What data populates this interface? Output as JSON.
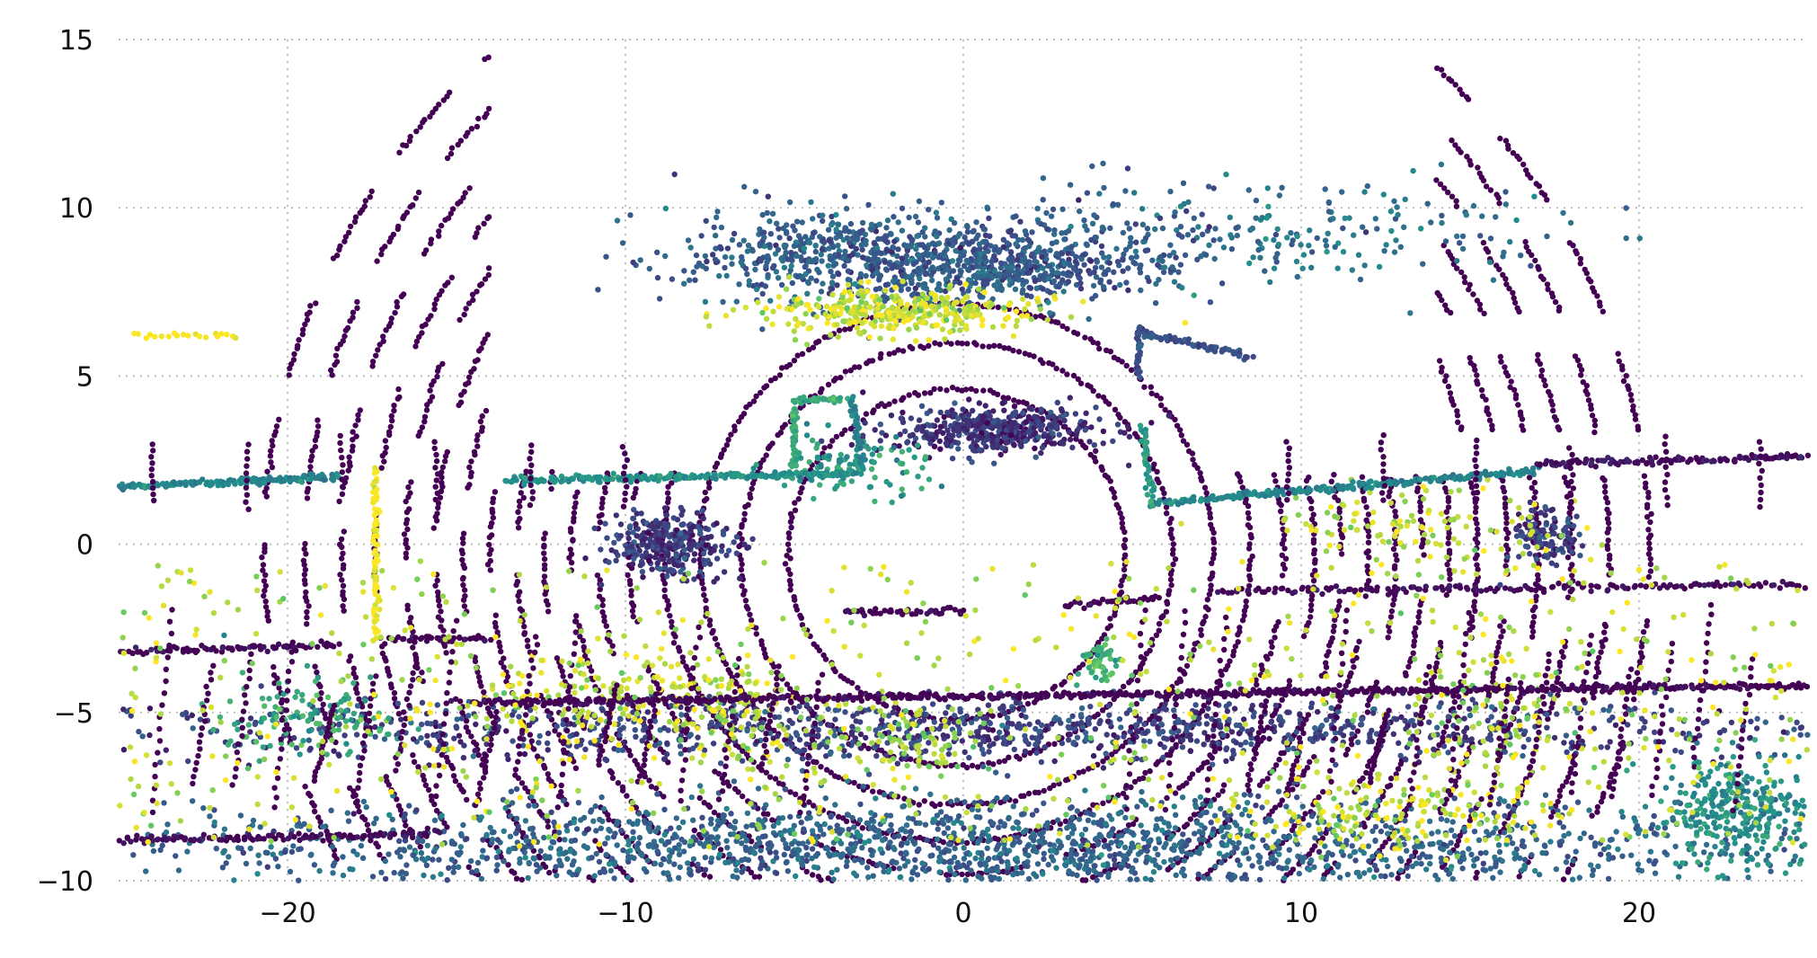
{
  "chart_data": {
    "type": "scatter",
    "title": "",
    "xlabel": "",
    "ylabel": "",
    "xlim": [
      -25,
      25
    ],
    "ylim": [
      -10,
      15
    ],
    "xticks": [
      -20,
      -10,
      0,
      10,
      20
    ],
    "yticks": [
      -10,
      -5,
      0,
      5,
      10,
      15
    ],
    "xtick_labels": [
      "−20",
      "−10",
      "0",
      "10",
      "20"
    ],
    "ytick_labels": [
      "−10",
      "−5",
      "0",
      "5",
      "10",
      "15"
    ],
    "grid": true,
    "grid_style": "dotted",
    "colormap": [
      "#440154",
      "#3b528b",
      "#21918c",
      "#5ec962",
      "#fde725"
    ],
    "description_points_note": "",
    "rings": {
      "center": [
        -0.2,
        -0.3
      ],
      "radii": [
        5.0,
        6.4,
        7.6,
        8.7,
        9.7,
        10.6,
        11.4,
        12.2,
        13.0,
        13.8,
        14.6,
        15.4,
        16.3,
        17.2,
        18.2,
        19.3,
        20.5
      ]
    },
    "clusters": [
      {
        "x": 0.8,
        "y": 3.4,
        "sx": 1.6,
        "sy": 0.35,
        "n": 450,
        "c": 0.15
      },
      {
        "x": -8.7,
        "y": 0.0,
        "sx": 0.9,
        "sy": 0.45,
        "n": 300,
        "c": 0.18
      },
      {
        "x": 17.2,
        "y": 0.3,
        "sx": 0.5,
        "sy": 0.4,
        "n": 120,
        "c": 0.2
      },
      {
        "x": -3.0,
        "y": 8.5,
        "sx": 2.8,
        "sy": 0.7,
        "n": 700,
        "c": 0.3
      },
      {
        "x": 1.5,
        "y": 8.2,
        "sx": 1.8,
        "sy": 0.45,
        "n": 350,
        "c": 0.28
      },
      {
        "x": -2.0,
        "y": 6.9,
        "sx": 2.0,
        "sy": 0.35,
        "n": 350,
        "c": 0.92
      },
      {
        "x": -3.4,
        "y": 2.3,
        "sx": 1.2,
        "sy": 0.5,
        "n": 110,
        "c": 0.55
      },
      {
        "x": 0.0,
        "y": -9.0,
        "sx": 12.0,
        "sy": 0.7,
        "n": 2000,
        "c": 0.32
      },
      {
        "x": 0.0,
        "y": -5.5,
        "sx": 14.0,
        "sy": 0.45,
        "n": 1200,
        "c": 0.2
      },
      {
        "x": -11.0,
        "y": -4.5,
        "sx": 2.2,
        "sy": 0.8,
        "n": 160,
        "c": 0.92
      },
      {
        "x": -6.8,
        "y": -5.0,
        "sx": 1.0,
        "sy": 0.7,
        "n": 110,
        "c": 0.9
      },
      {
        "x": 12.5,
        "y": -8.0,
        "sx": 2.2,
        "sy": 0.6,
        "n": 160,
        "c": 0.93
      },
      {
        "x": 13.5,
        "y": 0.5,
        "sx": 2.4,
        "sy": 0.6,
        "n": 120,
        "c": 0.92
      },
      {
        "x": 15.5,
        "y": -5.0,
        "sx": 1.3,
        "sy": 1.0,
        "n": 100,
        "c": 0.88
      },
      {
        "x": 23.0,
        "y": -8.0,
        "sx": 1.3,
        "sy": 0.8,
        "n": 350,
        "c": 0.5
      },
      {
        "x": -19.5,
        "y": -5.2,
        "sx": 1.2,
        "sy": 0.7,
        "n": 120,
        "c": 0.6
      },
      {
        "x": 4.0,
        "y": -3.5,
        "sx": 0.3,
        "sy": 0.4,
        "n": 50,
        "c": 0.65
      },
      {
        "x": -1.5,
        "y": -5.8,
        "sx": 1.2,
        "sy": 0.6,
        "n": 80,
        "c": 0.85
      },
      {
        "x": 11.0,
        "y": 9.3,
        "sx": 3.5,
        "sy": 0.8,
        "n": 160,
        "c": 0.38
      },
      {
        "x": 5.0,
        "y": 9.0,
        "sx": 1.8,
        "sy": 0.9,
        "n": 140,
        "c": 0.3
      }
    ],
    "segments": [
      {
        "x0": -25,
        "y0": 1.7,
        "x1": -18.5,
        "y1": 2.0,
        "n": 150,
        "c": 0.45
      },
      {
        "x0": -13.5,
        "y0": 1.9,
        "x1": -3.2,
        "y1": 2.1,
        "n": 220,
        "c": 0.5
      },
      {
        "x0": 5.5,
        "y0": 1.2,
        "x1": 17.0,
        "y1": 2.2,
        "n": 220,
        "c": 0.45
      },
      {
        "x0": 17.0,
        "y0": 2.4,
        "x1": 25,
        "y1": 2.6,
        "n": 120,
        "c": 0.05
      },
      {
        "x0": -14.5,
        "y0": -4.7,
        "x1": 25,
        "y1": -4.2,
        "n": 600,
        "c": 0.0
      },
      {
        "x0": -5.0,
        "y0": 4.2,
        "x1": -5.0,
        "y1": 2.2,
        "n": 40,
        "c": 0.6
      },
      {
        "x0": -5.0,
        "y0": 4.3,
        "x1": -3.5,
        "y1": 4.3,
        "n": 30,
        "c": 0.6
      },
      {
        "x0": -3.3,
        "y0": 4.3,
        "x1": -3.0,
        "y1": 2.2,
        "n": 40,
        "c": 0.45
      },
      {
        "x0": 5.2,
        "y0": 6.3,
        "x1": 8.5,
        "y1": 5.6,
        "n": 70,
        "c": 0.25
      },
      {
        "x0": 5.2,
        "y0": 6.4,
        "x1": 5.2,
        "y1": 5.0,
        "n": 30,
        "c": 0.25
      },
      {
        "x0": 5.3,
        "y0": 3.5,
        "x1": 5.6,
        "y1": 1.2,
        "n": 40,
        "c": 0.55
      },
      {
        "x0": -17.4,
        "y0": 2.2,
        "x1": -17.4,
        "y1": -2.8,
        "n": 70,
        "c": 1.0
      },
      {
        "x0": -3.5,
        "y0": -2.0,
        "x1": 0.0,
        "y1": -2.0,
        "n": 40,
        "c": 0.0
      },
      {
        "x0": 3.0,
        "y0": -1.8,
        "x1": 5.8,
        "y1": -1.6,
        "n": 40,
        "c": 0.0
      },
      {
        "x0": -17.0,
        "y0": -2.8,
        "x1": -14.0,
        "y1": -2.8,
        "n": 40,
        "c": 0.0
      },
      {
        "x0": -24.5,
        "y0": 6.2,
        "x1": -21.5,
        "y1": 6.2,
        "n": 20,
        "c": 1.0
      },
      {
        "x0": -25,
        "y0": -8.8,
        "x1": -15.5,
        "y1": -8.6,
        "n": 120,
        "c": 0.02
      },
      {
        "x0": -25,
        "y0": -3.2,
        "x1": -18.5,
        "y1": -3.0,
        "n": 80,
        "c": 0.02
      },
      {
        "x0": 7.5,
        "y0": -1.4,
        "x1": 25,
        "y1": -1.2,
        "n": 160,
        "c": 0.03
      }
    ],
    "scatter_noise": {
      "n": 1400,
      "c": 0.9
    }
  }
}
